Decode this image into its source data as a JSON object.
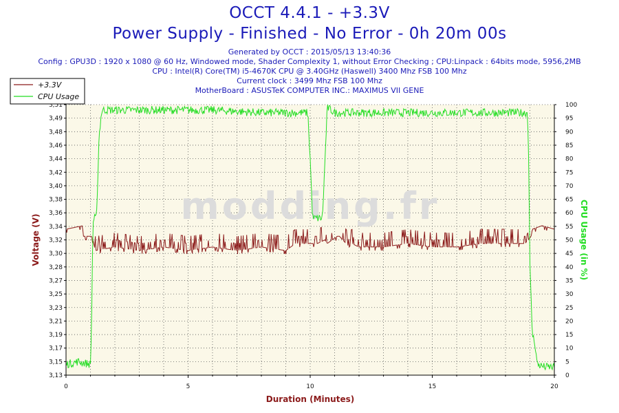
{
  "title": "OCCT 4.4.1 - +3.3V",
  "subtitle": "Power Supply - Finished - No Error - 0h 20m 00s",
  "info_lines": [
    "Generated by OCCT : 2015/05/13 13:40:36",
    "Config : GPU3D : 1920 x 1080 @ 60 Hz, Windowed mode, Shader Complexity 1, without Error Checking ; CPU:Linpack : 64bits mode, 5956,2MB",
    "CPU : Intel(R) Core(TM) i5-4670K CPU @ 3.40GHz (Haswell) 3400 Mhz FSB 100 Mhz",
    "Current clock : 3499 Mhz FSB 100 Mhz",
    "MotherBoard : ASUSTeK COMPUTER INC.: MAXIMUS VII GENE"
  ],
  "watermark": "modding.fr",
  "colors": {
    "voltage": "#8b1a1a",
    "cpu": "#22dd22",
    "plot_bg": "#fbf8e8",
    "title": "#1a1ab8"
  },
  "chart_data": {
    "type": "line",
    "xlabel": "Duration (Minutes)",
    "ylabel_left": "Voltage (V)",
    "ylabel_right": "CPU Usage (in %)",
    "xlim": [
      0,
      20
    ],
    "ylim_left": [
      3.13,
      3.51
    ],
    "ylim_right": [
      0,
      100
    ],
    "x_ticks": [
      "0",
      "5",
      "10",
      "15",
      "20"
    ],
    "y_left_ticks": [
      "3,13",
      "3,15",
      "3,17",
      "3,19",
      "3,21",
      "3,23",
      "3,25",
      "3,27",
      "3,28",
      "3,30",
      "3,32",
      "3,34",
      "3,36",
      "3,38",
      "3,40",
      "3,42",
      "3,44",
      "3,46",
      "3,48",
      "3,49",
      "3,51"
    ],
    "y_right_ticks": [
      "0",
      "5",
      "10",
      "15",
      "20",
      "25",
      "30",
      "35",
      "40",
      "45",
      "50",
      "55",
      "60",
      "65",
      "70",
      "75",
      "80",
      "85",
      "90",
      "95",
      "100"
    ],
    "grid": true,
    "legend_position": "top-left",
    "series": [
      {
        "name": "+3.3V",
        "axis": "left",
        "x": [
          0,
          0.7,
          0.71,
          1.05,
          1.1,
          1.2,
          2,
          3,
          4,
          5,
          6,
          7,
          8,
          9,
          9.4,
          10,
          10.3,
          10.6,
          10.7,
          11.1,
          11.2,
          11.6,
          11.7,
          12,
          13,
          14,
          15,
          16,
          17,
          18,
          18.8,
          19.05,
          19.1,
          19.5,
          20
        ],
        "values": [
          3.335,
          3.34,
          3.325,
          3.325,
          3.32,
          3.305,
          3.31,
          3.305,
          3.31,
          3.305,
          3.31,
          3.305,
          3.31,
          3.305,
          3.315,
          3.315,
          3.315,
          3.32,
          3.315,
          3.325,
          3.325,
          3.31,
          3.315,
          3.31,
          3.31,
          3.315,
          3.31,
          3.31,
          3.315,
          3.315,
          3.315,
          3.325,
          3.335,
          3.34,
          3.335
        ]
      },
      {
        "name": "CPU Usage",
        "axis": "right",
        "x": [
          0,
          0.5,
          1.0,
          1.05,
          1.1,
          1.15,
          1.25,
          1.35,
          1.45,
          1.5,
          2,
          4,
          6,
          8,
          9.9,
          10.0,
          10.1,
          10.3,
          10.5,
          10.6,
          10.7,
          11,
          13,
          15,
          17,
          18.9,
          18.95,
          19.0,
          19.1,
          19.2,
          19.3,
          19.6,
          20
        ],
        "values": [
          4,
          5,
          4,
          20,
          56,
          58,
          58,
          88,
          97,
          98,
          98,
          98,
          98,
          97,
          97,
          80,
          58,
          58,
          58,
          78,
          99,
          97,
          97,
          97,
          97,
          97,
          80,
          40,
          15,
          12,
          4,
          3,
          3
        ]
      }
    ]
  }
}
